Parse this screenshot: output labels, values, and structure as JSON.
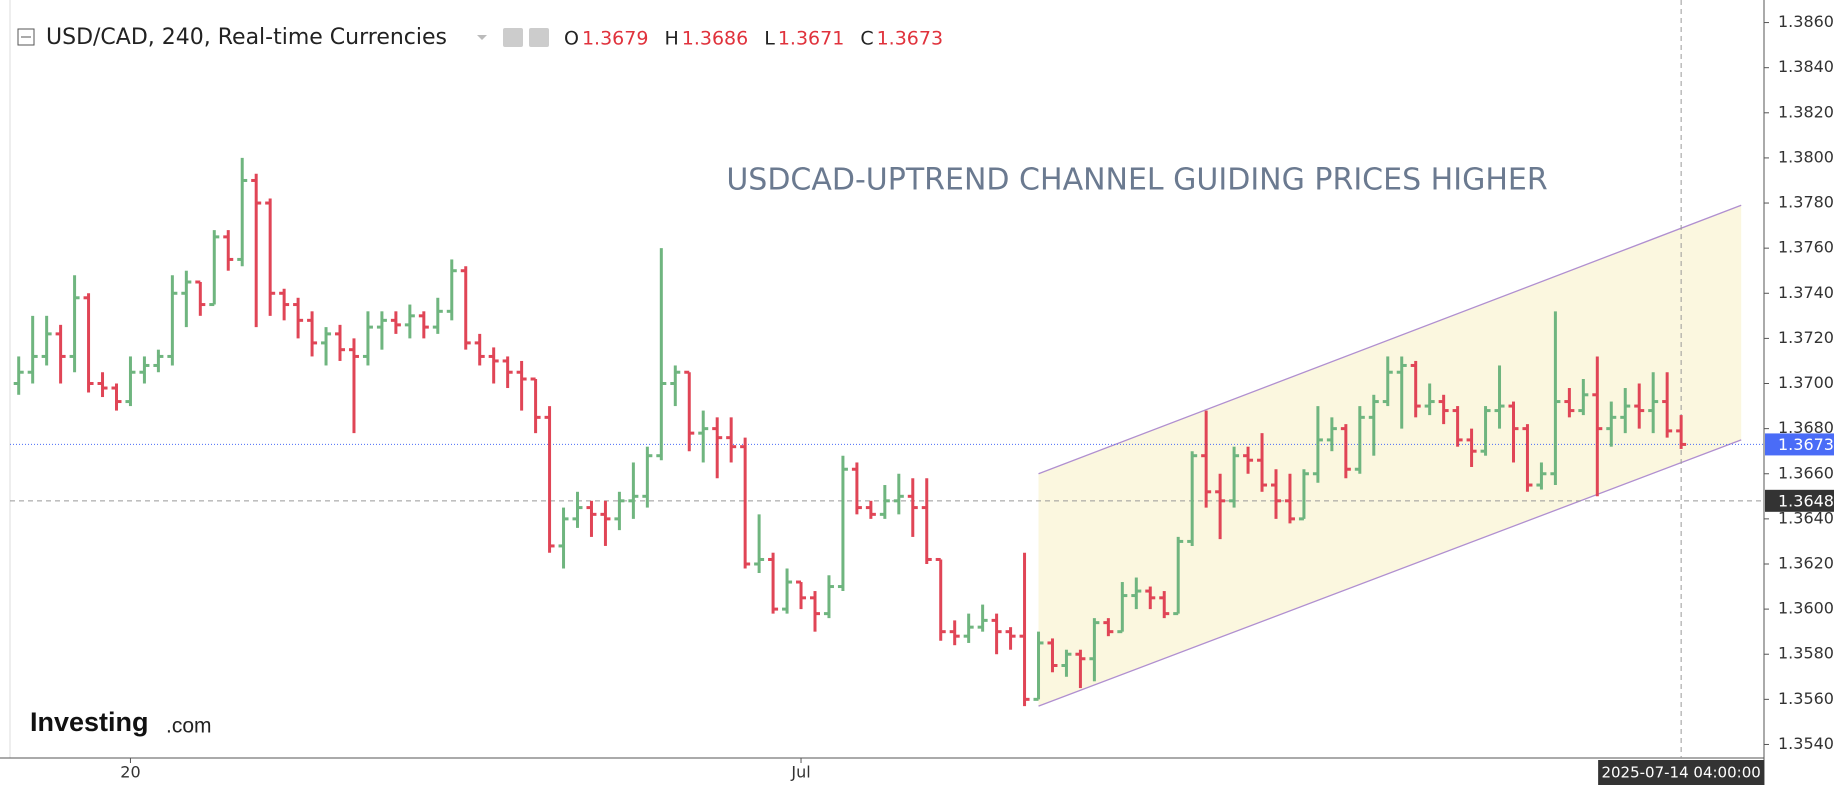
{
  "chart_data": {
    "type": "ohlc",
    "title": "USD/CAD, 240, Real-time Currencies",
    "ohlc_labels": [
      "O",
      "H",
      "L",
      "C"
    ],
    "annotation": "USDCAD-UPTREND CHANNEL GUIDING PRICES HIGHER",
    "logo": [
      "Investing",
      ".com"
    ],
    "up_color": "#6fb57f",
    "down_color": "#e04556",
    "categories": [
      null,
      null,
      null,
      null,
      null,
      null,
      null,
      null,
      "20",
      null,
      null,
      null,
      null,
      null,
      null,
      null,
      null,
      null,
      null,
      null,
      null,
      null,
      null,
      null,
      null,
      null,
      null,
      null,
      null,
      null,
      null,
      null,
      null,
      null,
      null,
      null,
      null,
      null,
      null,
      null,
      null,
      null,
      null,
      null,
      null,
      null,
      null,
      null,
      null,
      null,
      null,
      null,
      null,
      null,
      null,
      null,
      "Jul",
      null,
      null,
      null,
      null,
      null,
      null,
      null,
      null,
      null,
      null,
      null,
      null,
      null,
      null,
      null,
      null,
      null,
      null,
      null,
      null,
      null,
      null,
      null,
      null,
      null,
      null,
      null,
      null,
      null,
      null,
      null,
      null,
      null,
      null,
      null,
      null,
      null,
      null,
      null,
      null,
      null,
      null,
      null,
      null,
      null,
      null,
      null,
      null,
      null,
      null,
      null,
      null,
      null,
      null,
      null,
      null,
      null,
      null,
      null,
      null,
      null,
      null,
      null
    ],
    "open": [
      1.37,
      1.3705,
      1.3712,
      1.3722,
      1.3712,
      1.3738,
      1.37,
      1.3698,
      1.3692,
      1.3705,
      1.3708,
      1.3712,
      1.374,
      1.3745,
      1.3735,
      1.3765,
      1.3755,
      1.379,
      1.378,
      1.374,
      1.3735,
      1.3728,
      1.3718,
      1.3722,
      1.3715,
      1.3712,
      1.3725,
      1.3728,
      1.3726,
      1.373,
      1.3725,
      1.3732,
      1.375,
      1.3718,
      1.3712,
      1.371,
      1.3705,
      1.3702,
      1.3685,
      1.3628,
      1.364,
      1.3645,
      1.3642,
      1.364,
      1.3648,
      1.365,
      1.3668,
      1.37,
      1.3705,
      1.3678,
      1.368,
      1.3676,
      1.3672,
      1.362,
      1.3622,
      1.36,
      1.3612,
      1.3605,
      1.3598,
      1.361,
      1.3662,
      1.3645,
      1.3642,
      1.3648,
      1.365,
      1.3645,
      1.3622,
      1.359,
      1.3588,
      1.3592,
      1.3595,
      1.359,
      1.3588,
      1.356,
      1.3585,
      1.3575,
      1.358,
      1.3578,
      1.3594,
      1.359,
      1.3606,
      1.3608,
      1.3605,
      1.3598,
      1.363,
      1.3668,
      1.3652,
      1.3648,
      1.3668,
      1.3666,
      1.3655,
      1.3648,
      1.364,
      1.366,
      1.3675,
      1.368,
      1.3662,
      1.3685,
      1.3692,
      1.3705,
      1.3708,
      1.369,
      1.3692,
      1.3688,
      1.3675,
      1.367,
      1.3688,
      1.369,
      1.368,
      1.3655,
      1.366,
      1.3692,
      1.3688,
      1.3695,
      1.368,
      1.3685,
      1.369,
      1.3688,
      1.3692,
      1.3679
    ],
    "high": [
      1.3712,
      1.373,
      1.373,
      1.3726,
      1.3748,
      1.374,
      1.3705,
      1.37,
      1.3712,
      1.3712,
      1.3715,
      1.3748,
      1.375,
      1.3745,
      1.3768,
      1.3768,
      1.38,
      1.3793,
      1.3782,
      1.3742,
      1.3738,
      1.3732,
      1.3725,
      1.3726,
      1.372,
      1.3732,
      1.3732,
      1.3732,
      1.3735,
      1.3732,
      1.3738,
      1.3755,
      1.3752,
      1.3722,
      1.3716,
      1.3712,
      1.371,
      1.3702,
      1.369,
      1.3645,
      1.3652,
      1.3648,
      1.3648,
      1.3652,
      1.3665,
      1.3672,
      1.376,
      1.3708,
      1.3705,
      1.3688,
      1.3685,
      1.3685,
      1.3676,
      1.3642,
      1.3625,
      1.3618,
      1.3612,
      1.3608,
      1.3615,
      1.3668,
      1.3665,
      1.3648,
      1.3655,
      1.366,
      1.3658,
      1.3658,
      1.3622,
      1.3595,
      1.3598,
      1.3602,
      1.3598,
      1.3592,
      1.3625,
      1.359,
      1.3587,
      1.3582,
      1.3582,
      1.3596,
      1.3596,
      1.3612,
      1.3614,
      1.361,
      1.3608,
      1.3632,
      1.367,
      1.3688,
      1.366,
      1.3672,
      1.3672,
      1.3678,
      1.3662,
      1.366,
      1.3662,
      1.369,
      1.3685,
      1.3682,
      1.369,
      1.3695,
      1.3712,
      1.3712,
      1.371,
      1.37,
      1.3695,
      1.369,
      1.368,
      1.369,
      1.3708,
      1.3692,
      1.3682,
      1.3665,
      1.3732,
      1.3698,
      1.3702,
      1.3712,
      1.3692,
      1.3698,
      1.37,
      1.3705,
      1.3705,
      1.3686
    ],
    "low": [
      1.3695,
      1.37,
      1.3708,
      1.37,
      1.3705,
      1.3696,
      1.3694,
      1.3688,
      1.369,
      1.37,
      1.3705,
      1.3708,
      1.3725,
      1.373,
      1.3735,
      1.375,
      1.3752,
      1.3725,
      1.373,
      1.3728,
      1.372,
      1.3712,
      1.3708,
      1.371,
      1.3678,
      1.3708,
      1.3715,
      1.3722,
      1.372,
      1.372,
      1.3722,
      1.3728,
      1.3715,
      1.3708,
      1.37,
      1.3698,
      1.3688,
      1.3678,
      1.3625,
      1.3618,
      1.3636,
      1.3632,
      1.3628,
      1.3635,
      1.364,
      1.3645,
      1.3666,
      1.369,
      1.367,
      1.3665,
      1.3658,
      1.3665,
      1.3618,
      1.3616,
      1.3598,
      1.3598,
      1.36,
      1.359,
      1.3596,
      1.3608,
      1.3642,
      1.364,
      1.364,
      1.3642,
      1.3632,
      1.362,
      1.3586,
      1.3584,
      1.3585,
      1.359,
      1.358,
      1.3582,
      1.3557,
      1.356,
      1.3572,
      1.357,
      1.3565,
      1.3568,
      1.3588,
      1.359,
      1.36,
      1.36,
      1.3596,
      1.3598,
      1.3628,
      1.3645,
      1.3631,
      1.3645,
      1.366,
      1.3652,
      1.364,
      1.3638,
      1.364,
      1.3656,
      1.367,
      1.3658,
      1.366,
      1.3668,
      1.369,
      1.368,
      1.3685,
      1.3686,
      1.3682,
      1.3672,
      1.3663,
      1.3668,
      1.368,
      1.3665,
      1.3652,
      1.3653,
      1.3655,
      1.3685,
      1.3686,
      1.365,
      1.3672,
      1.3678,
      1.368,
      1.3678,
      1.3676,
      1.3671
    ],
    "close": [
      1.3705,
      1.3712,
      1.3722,
      1.3712,
      1.3738,
      1.37,
      1.3698,
      1.3692,
      1.3705,
      1.3708,
      1.3712,
      1.374,
      1.3745,
      1.3735,
      1.3765,
      1.3755,
      1.379,
      1.378,
      1.374,
      1.3735,
      1.3728,
      1.3718,
      1.3722,
      1.3715,
      1.3712,
      1.3725,
      1.3728,
      1.3726,
      1.373,
      1.3725,
      1.3732,
      1.375,
      1.3718,
      1.3712,
      1.371,
      1.3705,
      1.3702,
      1.3685,
      1.3628,
      1.364,
      1.3645,
      1.3642,
      1.364,
      1.3648,
      1.365,
      1.3668,
      1.37,
      1.3705,
      1.3678,
      1.368,
      1.3676,
      1.3672,
      1.362,
      1.3622,
      1.36,
      1.3612,
      1.3605,
      1.3598,
      1.361,
      1.3662,
      1.3645,
      1.3642,
      1.3648,
      1.365,
      1.3645,
      1.3622,
      1.359,
      1.3588,
      1.3592,
      1.3595,
      1.359,
      1.3588,
      1.356,
      1.3585,
      1.3575,
      1.358,
      1.3578,
      1.3594,
      1.359,
      1.3606,
      1.3608,
      1.3605,
      1.3598,
      1.363,
      1.3668,
      1.3652,
      1.3648,
      1.3668,
      1.3666,
      1.3655,
      1.3648,
      1.364,
      1.366,
      1.3675,
      1.368,
      1.3662,
      1.3685,
      1.3692,
      1.3705,
      1.3708,
      1.369,
      1.3692,
      1.3688,
      1.3675,
      1.367,
      1.3688,
      1.369,
      1.368,
      1.3655,
      1.366,
      1.3692,
      1.3688,
      1.3695,
      1.368,
      1.3685,
      1.369,
      1.3688,
      1.3692,
      1.3679,
      1.3673
    ],
    "channel": {
      "x": [
        73,
        123.3
      ],
      "upper": [
        1.366,
        1.3779
      ],
      "lower": [
        1.3557,
        1.3675
      ],
      "color": "#b08fd0",
      "fill": "#fbf7df"
    },
    "crosshair": {
      "price": 1.3648,
      "time": "2025-07-14 04:00:00"
    },
    "ylim": [
      1.3534,
      1.387
    ],
    "yticks": [
      {
        "value": 1.354,
        "label": "1.3540"
      },
      {
        "value": 1.356,
        "label": "1.3560"
      },
      {
        "value": 1.358,
        "label": "1.3580"
      },
      {
        "value": 1.36,
        "label": "1.3600"
      },
      {
        "value": 1.362,
        "label": "1.3620"
      },
      {
        "value": 1.364,
        "label": "1.3640"
      },
      {
        "value": 1.366,
        "label": "1.3660"
      },
      {
        "value": 1.368,
        "label": "1.3680"
      },
      {
        "value": 1.37,
        "label": "1.3700"
      },
      {
        "value": 1.372,
        "label": "1.3720"
      },
      {
        "value": 1.374,
        "label": "1.3740"
      },
      {
        "value": 1.376,
        "label": "1.3760"
      },
      {
        "value": 1.378,
        "label": "1.3780"
      },
      {
        "value": 1.38,
        "label": "1.3800"
      },
      {
        "value": 1.382,
        "label": "1.3820"
      },
      {
        "value": 1.384,
        "label": "1.3840"
      },
      {
        "value": 1.386,
        "label": "1.3860"
      }
    ]
  }
}
